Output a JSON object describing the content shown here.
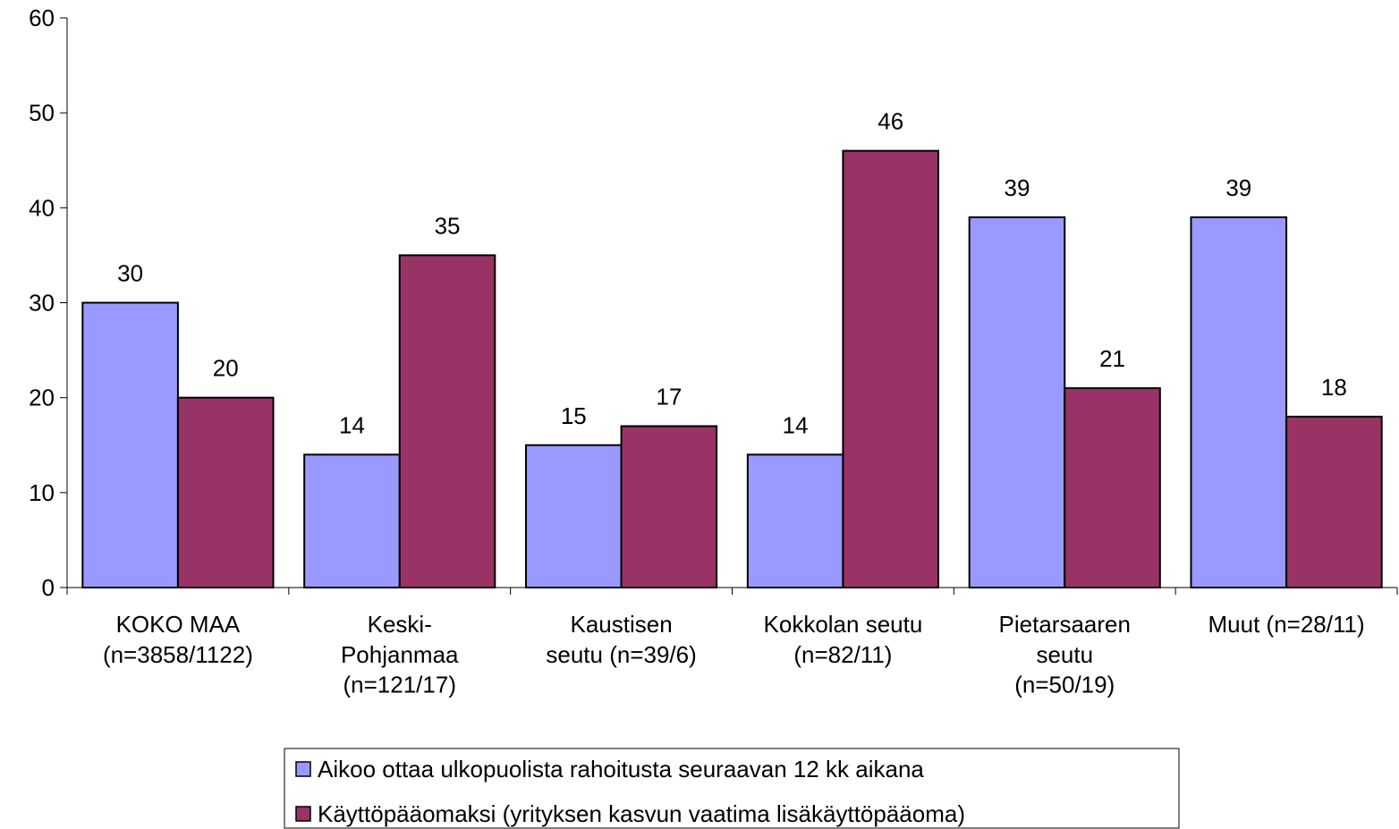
{
  "chart_data": {
    "type": "bar",
    "categories": [
      "KOKO MAA\n(n=3858/1122)",
      "Keski-\nPohjanmaa\n(n=121/17)",
      "Kaustisen\nseutu (n=39/6)",
      "Kokkolan seutu\n(n=82/11)",
      "Pietarsaaren\nseutu\n(n=50/19)",
      "Muut (n=28/11)"
    ],
    "series": [
      {
        "name": "Aikoo ottaa ulkopuolista rahoitusta seuraavan 12 kk aikana",
        "color": "#9999ff",
        "values": [
          30,
          14,
          15,
          14,
          39,
          39
        ]
      },
      {
        "name": "Käyttöpääomaksi (yrityksen kasvun vaatima lisäkäyttöpääoma)",
        "color": "#993366",
        "values": [
          20,
          35,
          17,
          46,
          21,
          18
        ]
      }
    ],
    "ylim": [
      0,
      60
    ],
    "yticks": [
      0,
      10,
      20,
      30,
      40,
      50,
      60
    ]
  }
}
